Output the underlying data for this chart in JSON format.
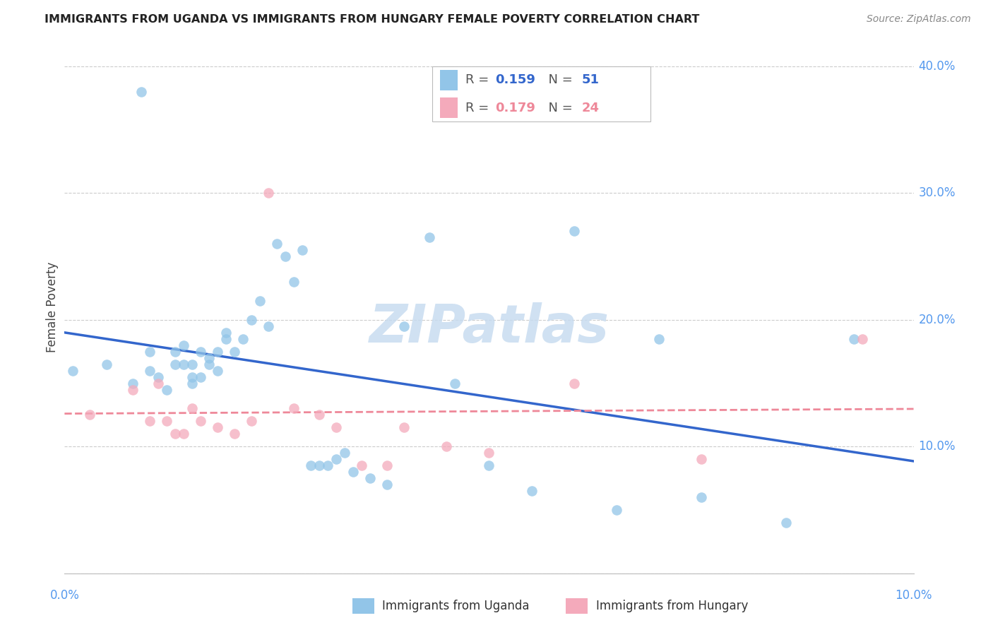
{
  "title": "IMMIGRANTS FROM UGANDA VS IMMIGRANTS FROM HUNGARY FEMALE POVERTY CORRELATION CHART",
  "source": "Source: ZipAtlas.com",
  "ylabel": "Female Poverty",
  "xlim": [
    0.0,
    0.1
  ],
  "ylim": [
    0.0,
    0.42
  ],
  "yticks": [
    0.0,
    0.1,
    0.2,
    0.3,
    0.4
  ],
  "ytick_labels": [
    "",
    "10.0%",
    "20.0%",
    "30.0%",
    "40.0%"
  ],
  "uganda_color": "#92C5E8",
  "hungary_color": "#F4AABB",
  "uganda_line_color": "#3366CC",
  "hungary_line_color": "#EE8899",
  "legend_R_uganda": "0.159",
  "legend_N_uganda": "51",
  "legend_R_hungary": "0.179",
  "legend_N_hungary": "24",
  "watermark": "ZIPatlas",
  "uganda_x": [
    0.001,
    0.005,
    0.008,
    0.009,
    0.01,
    0.01,
    0.011,
    0.012,
    0.013,
    0.013,
    0.014,
    0.014,
    0.015,
    0.015,
    0.015,
    0.016,
    0.016,
    0.017,
    0.017,
    0.018,
    0.018,
    0.019,
    0.019,
    0.02,
    0.021,
    0.022,
    0.023,
    0.024,
    0.025,
    0.026,
    0.027,
    0.028,
    0.029,
    0.03,
    0.031,
    0.032,
    0.033,
    0.034,
    0.036,
    0.038,
    0.04,
    0.043,
    0.046,
    0.05,
    0.055,
    0.06,
    0.065,
    0.07,
    0.075,
    0.085,
    0.093
  ],
  "uganda_y": [
    0.16,
    0.165,
    0.15,
    0.38,
    0.16,
    0.175,
    0.155,
    0.145,
    0.165,
    0.175,
    0.165,
    0.18,
    0.165,
    0.155,
    0.15,
    0.175,
    0.155,
    0.17,
    0.165,
    0.175,
    0.16,
    0.185,
    0.19,
    0.175,
    0.185,
    0.2,
    0.215,
    0.195,
    0.26,
    0.25,
    0.23,
    0.255,
    0.085,
    0.085,
    0.085,
    0.09,
    0.095,
    0.08,
    0.075,
    0.07,
    0.195,
    0.265,
    0.15,
    0.085,
    0.065,
    0.27,
    0.05,
    0.185,
    0.06,
    0.04,
    0.185
  ],
  "hungary_x": [
    0.003,
    0.008,
    0.01,
    0.011,
    0.012,
    0.013,
    0.014,
    0.015,
    0.016,
    0.018,
    0.02,
    0.022,
    0.024,
    0.027,
    0.03,
    0.032,
    0.035,
    0.038,
    0.04,
    0.045,
    0.05,
    0.06,
    0.075,
    0.094
  ],
  "hungary_y": [
    0.125,
    0.145,
    0.12,
    0.15,
    0.12,
    0.11,
    0.11,
    0.13,
    0.12,
    0.115,
    0.11,
    0.12,
    0.3,
    0.13,
    0.125,
    0.115,
    0.085,
    0.085,
    0.115,
    0.1,
    0.095,
    0.15,
    0.09,
    0.185
  ]
}
